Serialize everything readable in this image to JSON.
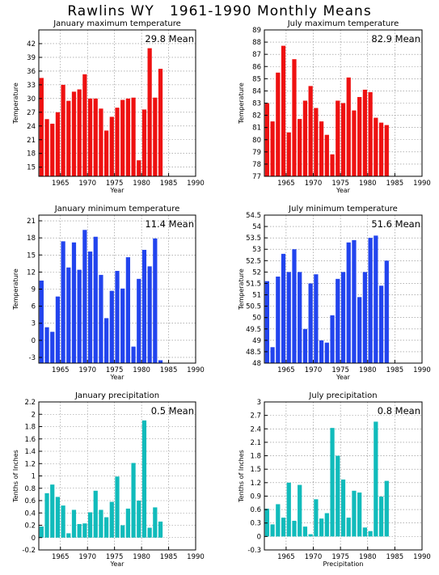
{
  "title": "Rawlins WY   1961-1990 Monthly Means",
  "chart_data": [
    {
      "type": "bar",
      "title": "January maximum temperature",
      "ylabel": "Temperature",
      "xlabel": "Year",
      "mean_label": "29.8 Mean",
      "color": "#ee1111",
      "ylim": [
        13,
        45
      ],
      "yticks": [
        15,
        18,
        21,
        24,
        27,
        30,
        33,
        36,
        39,
        42
      ],
      "xlim": [
        1961,
        1990
      ],
      "xticks": [
        1965,
        1970,
        1975,
        1980,
        1985,
        1990
      ],
      "x": [
        1961,
        1962,
        1963,
        1964,
        1965,
        1966,
        1967,
        1968,
        1969,
        1970,
        1971,
        1972,
        1973,
        1974,
        1975,
        1976,
        1977,
        1978,
        1979,
        1980,
        1981,
        1982,
        1983
      ],
      "values": [
        34.5,
        25.5,
        24.5,
        27.0,
        33.0,
        29.5,
        31.5,
        32.0,
        35.3,
        30.0,
        30.0,
        27.8,
        23.0,
        26.0,
        28.0,
        29.7,
        30.0,
        30.2,
        16.5,
        27.6,
        41.0,
        30.2,
        36.5
      ]
    },
    {
      "type": "bar",
      "title": "July maximum temperature",
      "ylabel": "Temperature",
      "xlabel": "Year",
      "mean_label": "82.9 Mean",
      "color": "#ee1111",
      "ylim": [
        77,
        89
      ],
      "yticks": [
        77,
        78,
        79,
        80,
        81,
        82,
        83,
        84,
        85,
        86,
        87,
        88,
        89
      ],
      "xlim": [
        1961,
        1990
      ],
      "xticks": [
        1965,
        1970,
        1975,
        1980,
        1985,
        1990
      ],
      "x": [
        1961,
        1962,
        1963,
        1964,
        1965,
        1966,
        1967,
        1968,
        1969,
        1970,
        1971,
        1972,
        1973,
        1974,
        1975,
        1976,
        1977,
        1978,
        1979,
        1980,
        1981,
        1982,
        1983
      ],
      "values": [
        83.0,
        81.5,
        85.5,
        87.7,
        80.6,
        86.6,
        81.7,
        83.2,
        84.4,
        82.6,
        81.5,
        80.4,
        78.8,
        83.2,
        83.0,
        85.1,
        82.4,
        83.5,
        84.1,
        83.9,
        81.8,
        81.4,
        81.2
      ]
    },
    {
      "type": "bar",
      "title": "January minimum temperature",
      "ylabel": "Temperature",
      "xlabel": "Year",
      "mean_label": "11.4 Mean",
      "color": "#2244ee",
      "ylim": [
        -4,
        22
      ],
      "yticks": [
        -3,
        0,
        3,
        6,
        9,
        12,
        15,
        18,
        21
      ],
      "xlim": [
        1961,
        1990
      ],
      "xticks": [
        1965,
        1970,
        1975,
        1980,
        1985,
        1990
      ],
      "x": [
        1961,
        1962,
        1963,
        1964,
        1965,
        1966,
        1967,
        1968,
        1969,
        1970,
        1971,
        1972,
        1973,
        1974,
        1975,
        1976,
        1977,
        1978,
        1979,
        1980,
        1981,
        1982,
        1983
      ],
      "values": [
        10.5,
        2.3,
        1.5,
        7.7,
        17.4,
        12.8,
        17.2,
        12.4,
        19.4,
        15.6,
        18.2,
        11.5,
        3.9,
        8.7,
        12.2,
        9.1,
        14.6,
        -1.1,
        10.8,
        15.9,
        13.0,
        17.9,
        -3.5
      ]
    },
    {
      "type": "bar",
      "title": "July minimum temperature",
      "ylabel": "Temperature",
      "xlabel": "Year",
      "mean_label": "51.6 Mean",
      "color": "#2244ee",
      "ylim": [
        48,
        54.5
      ],
      "yticks": [
        48,
        48.5,
        49,
        49.5,
        50,
        50.5,
        51,
        51.5,
        52,
        52.5,
        53,
        53.5,
        54,
        54.5
      ],
      "xlim": [
        1961,
        1990
      ],
      "xticks": [
        1965,
        1970,
        1975,
        1980,
        1985,
        1990
      ],
      "x": [
        1961,
        1962,
        1963,
        1964,
        1965,
        1966,
        1967,
        1968,
        1969,
        1970,
        1971,
        1972,
        1973,
        1974,
        1975,
        1976,
        1977,
        1978,
        1979,
        1980,
        1981,
        1982,
        1983
      ],
      "values": [
        51.6,
        48.7,
        51.8,
        52.8,
        52.0,
        53.0,
        52.0,
        49.5,
        51.5,
        51.9,
        49.0,
        48.9,
        50.1,
        51.7,
        52.0,
        53.3,
        53.4,
        50.9,
        52.0,
        53.5,
        53.6,
        51.4,
        52.5
      ]
    },
    {
      "type": "bar",
      "title": "January precipitation",
      "ylabel": "Tenths of Inches",
      "xlabel": "Year",
      "mean_label": "0.5 Mean",
      "color": "#11bbbb",
      "ylim": [
        -0.2,
        2.2
      ],
      "yticks": [
        -0.2,
        0,
        0.2,
        0.4,
        0.6,
        0.8,
        1,
        1.2,
        1.4,
        1.6,
        1.8,
        2,
        2.2
      ],
      "ytick_labels": [
        "-0.2",
        "0",
        "0.2",
        "0.4",
        "0.6",
        "0.8",
        "1",
        "1.2",
        "1.4",
        "1.6",
        "1.8",
        "2",
        "2.2"
      ],
      "xlim": [
        1961,
        1990
      ],
      "xticks": [
        1965,
        1970,
        1975,
        1980,
        1985,
        1990
      ],
      "x": [
        1961,
        1962,
        1963,
        1964,
        1965,
        1966,
        1967,
        1968,
        1969,
        1970,
        1971,
        1972,
        1973,
        1974,
        1975,
        1976,
        1977,
        1978,
        1979,
        1980,
        1981,
        1982,
        1983
      ],
      "values": [
        0.18,
        0.72,
        0.86,
        0.66,
        0.52,
        0.07,
        0.45,
        0.22,
        0.23,
        0.41,
        0.76,
        0.45,
        0.33,
        0.58,
        0.99,
        0.2,
        0.47,
        1.21,
        0.6,
        1.9,
        0.16,
        0.49,
        0.26
      ]
    },
    {
      "type": "bar",
      "title": "July precipitation",
      "ylabel": "Tenths of Inches",
      "xlabel": "Precipitation",
      "mean_label": "0.8 Mean",
      "color": "#11bbbb",
      "ylim": [
        -0.3,
        3
      ],
      "yticks": [
        -0.3,
        0,
        0.3,
        0.6,
        0.9,
        1.2,
        1.5,
        1.8,
        2.1,
        2.4,
        2.7,
        3
      ],
      "ytick_labels": [
        "-0.3",
        "0",
        "0.3",
        "0.6",
        "0.9",
        "1.2",
        "1.5",
        "1.8",
        "2.1",
        "2.4",
        "2.7",
        "3"
      ],
      "xlim": [
        1961,
        1990
      ],
      "xticks": [
        1965,
        1970,
        1975,
        1980,
        1985,
        1990
      ],
      "x": [
        1961,
        1962,
        1963,
        1964,
        1965,
        1966,
        1967,
        1968,
        1969,
        1970,
        1971,
        1972,
        1973,
        1974,
        1975,
        1976,
        1977,
        1978,
        1979,
        1980,
        1981,
        1982,
        1983
      ],
      "values": [
        0.62,
        0.27,
        0.72,
        0.42,
        1.2,
        0.35,
        1.15,
        0.22,
        0.05,
        0.83,
        0.4,
        0.52,
        2.42,
        1.8,
        1.27,
        0.42,
        1.02,
        0.98,
        0.2,
        0.12,
        2.56,
        0.89,
        1.24
      ]
    }
  ]
}
